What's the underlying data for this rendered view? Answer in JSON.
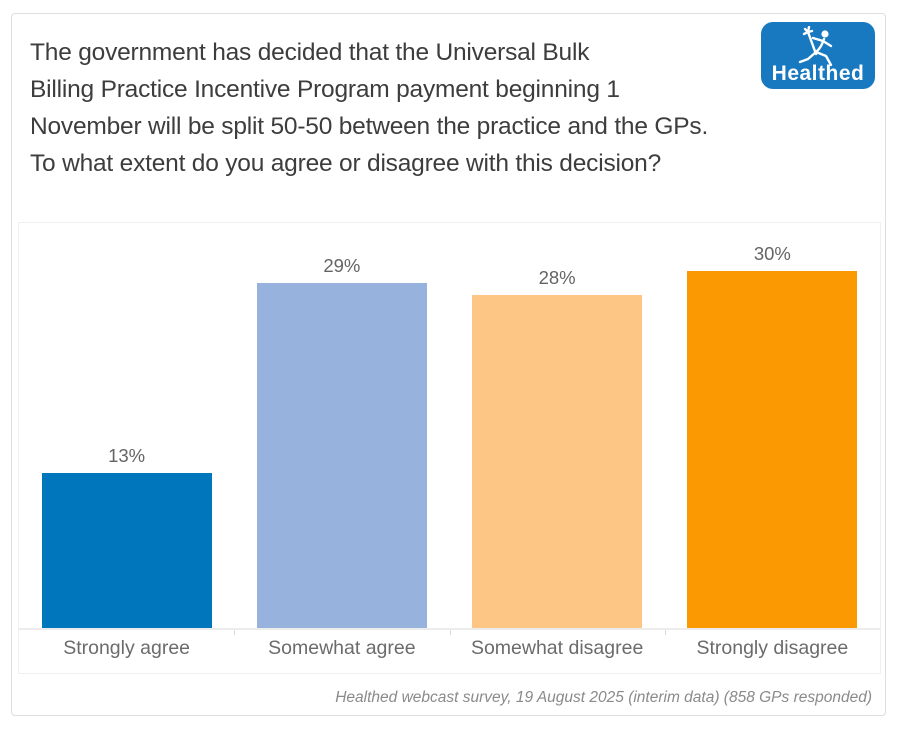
{
  "header": {
    "title_lines": [
      "The government has decided that the Universal Bulk",
      "Billing Practice Incentive Program payment beginning 1",
      "November will be split 50-50 between the practice and the GPs.",
      "To what extent do you agree or disagree with this decision?"
    ]
  },
  "logo": {
    "text": "Healthed",
    "bg_color": "#1879c0",
    "icon": "hermes-caduceus-runner-icon"
  },
  "chart_data": {
    "type": "bar",
    "title": "The government has decided that the Universal Bulk Billing Practice Incentive Program payment beginning 1 November will be split 50-50 between the practice and the GPs. To what extent do you agree or disagree with this decision?",
    "categories": [
      "Strongly agree",
      "Somewhat agree",
      "Somewhat disagree",
      "Strongly disagree"
    ],
    "values": [
      13,
      29,
      28,
      30
    ],
    "value_labels": [
      "13%",
      "29%",
      "28%",
      "30%"
    ],
    "colors": [
      "#0077bd",
      "#97b3dd",
      "#fdc684",
      "#fb9902"
    ],
    "xlabel": "",
    "ylabel": "",
    "ylim": [
      0,
      34
    ],
    "grid": false,
    "legend": "none",
    "label_color": "#646464",
    "axis_label_color": "#6b6b6b"
  },
  "footer": {
    "source": "Healthed webcast survey, 19 August 2025 (interim data) (858 GPs responded)"
  }
}
